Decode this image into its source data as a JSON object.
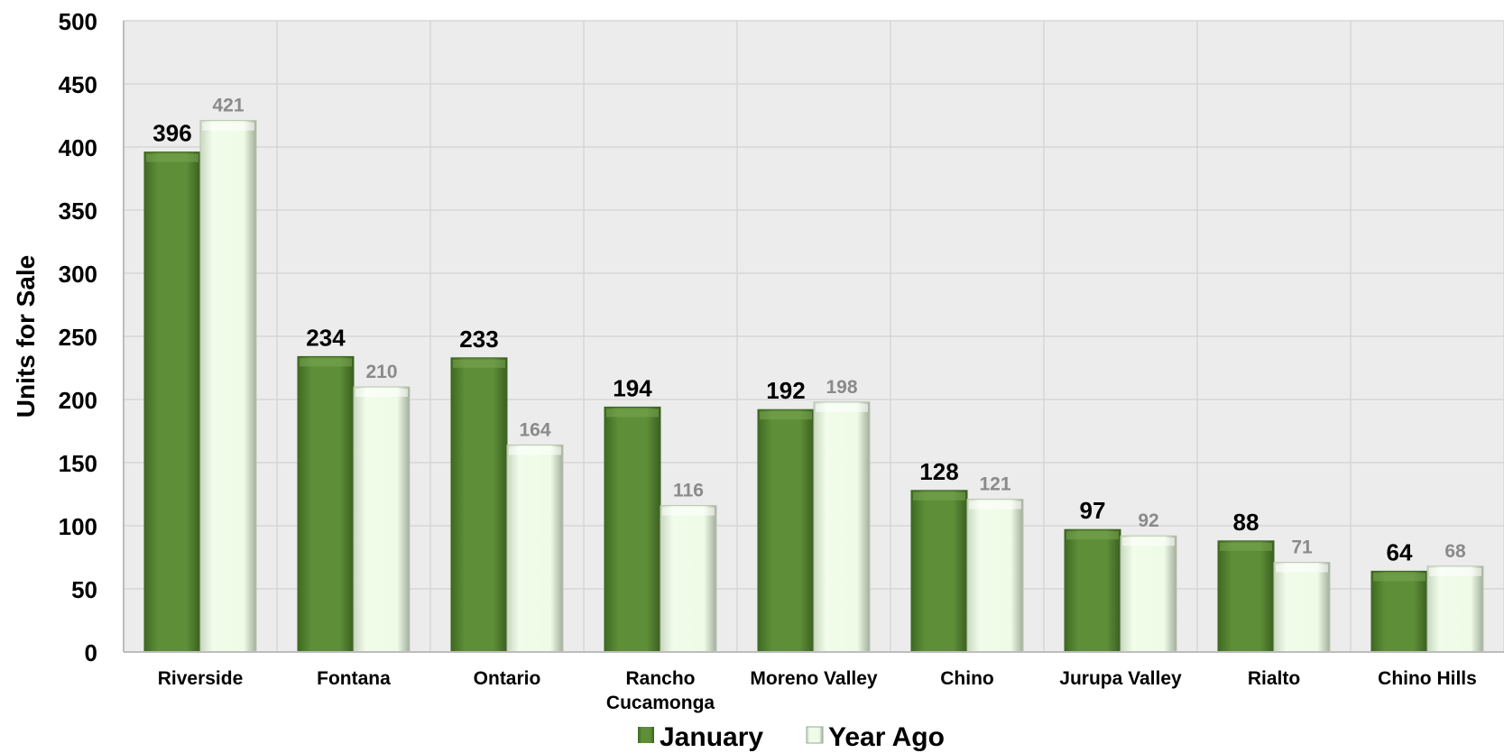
{
  "chart_data": {
    "type": "bar",
    "categories": [
      "Riverside",
      "Fontana",
      "Ontario",
      "Rancho Cucamonga",
      "Moreno Valley",
      "Chino",
      "Jurupa Valley",
      "Rialto",
      "Chino Hills"
    ],
    "category_lines": [
      [
        "Riverside"
      ],
      [
        "Fontana"
      ],
      [
        "Ontario"
      ],
      [
        "Rancho",
        "Cucamonga"
      ],
      [
        "Moreno Valley"
      ],
      [
        "Chino"
      ],
      [
        "Jurupa Valley"
      ],
      [
        "Rialto"
      ],
      [
        "Chino Hills"
      ]
    ],
    "series": [
      {
        "name": "January",
        "values": [
          396,
          234,
          233,
          194,
          192,
          128,
          97,
          88,
          64
        ],
        "color": "#5b8a35"
      },
      {
        "name": "Year Ago",
        "values": [
          421,
          210,
          164,
          116,
          198,
          121,
          92,
          71,
          68
        ],
        "color": "#eefbe6"
      }
    ],
    "ylabel": "Units for Sale",
    "ylim": [
      0,
      500
    ],
    "yticks": [
      0,
      50,
      100,
      150,
      200,
      250,
      300,
      350,
      400,
      450,
      500
    ],
    "grid": true,
    "legend_position": "bottom-center",
    "background_color": "#ececec"
  }
}
